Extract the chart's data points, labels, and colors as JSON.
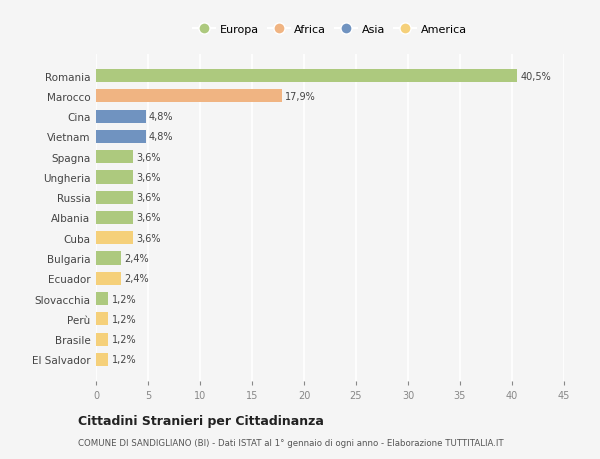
{
  "countries": [
    "Romania",
    "Marocco",
    "Cina",
    "Vietnam",
    "Spagna",
    "Ungheria",
    "Russia",
    "Albania",
    "Cuba",
    "Bulgaria",
    "Ecuador",
    "Slovacchia",
    "Perù",
    "Brasile",
    "El Salvador"
  ],
  "values": [
    40.5,
    17.9,
    4.8,
    4.8,
    3.6,
    3.6,
    3.6,
    3.6,
    3.6,
    2.4,
    2.4,
    1.2,
    1.2,
    1.2,
    1.2
  ],
  "labels": [
    "40,5%",
    "17,9%",
    "4,8%",
    "4,8%",
    "3,6%",
    "3,6%",
    "3,6%",
    "3,6%",
    "3,6%",
    "2,4%",
    "2,4%",
    "1,2%",
    "1,2%",
    "1,2%",
    "1,2%"
  ],
  "continents": [
    "Europa",
    "Africa",
    "Asia",
    "Asia",
    "Europa",
    "Europa",
    "Europa",
    "Europa",
    "America",
    "Europa",
    "America",
    "Europa",
    "America",
    "America",
    "America"
  ],
  "colors": {
    "Europa": "#adc97e",
    "Africa": "#f0b482",
    "Asia": "#7093c0",
    "America": "#f5d07a"
  },
  "legend_order": [
    "Europa",
    "Africa",
    "Asia",
    "America"
  ],
  "title": "Cittadini Stranieri per Cittadinanza",
  "subtitle": "COMUNE DI SANDIGLIANO (BI) - Dati ISTAT al 1° gennaio di ogni anno - Elaborazione TUTTITALIA.IT",
  "xlim": [
    0,
    45
  ],
  "xticks": [
    0,
    5,
    10,
    15,
    20,
    25,
    30,
    35,
    40,
    45
  ],
  "bg_color": "#f5f5f5",
  "grid_color": "#ffffff"
}
